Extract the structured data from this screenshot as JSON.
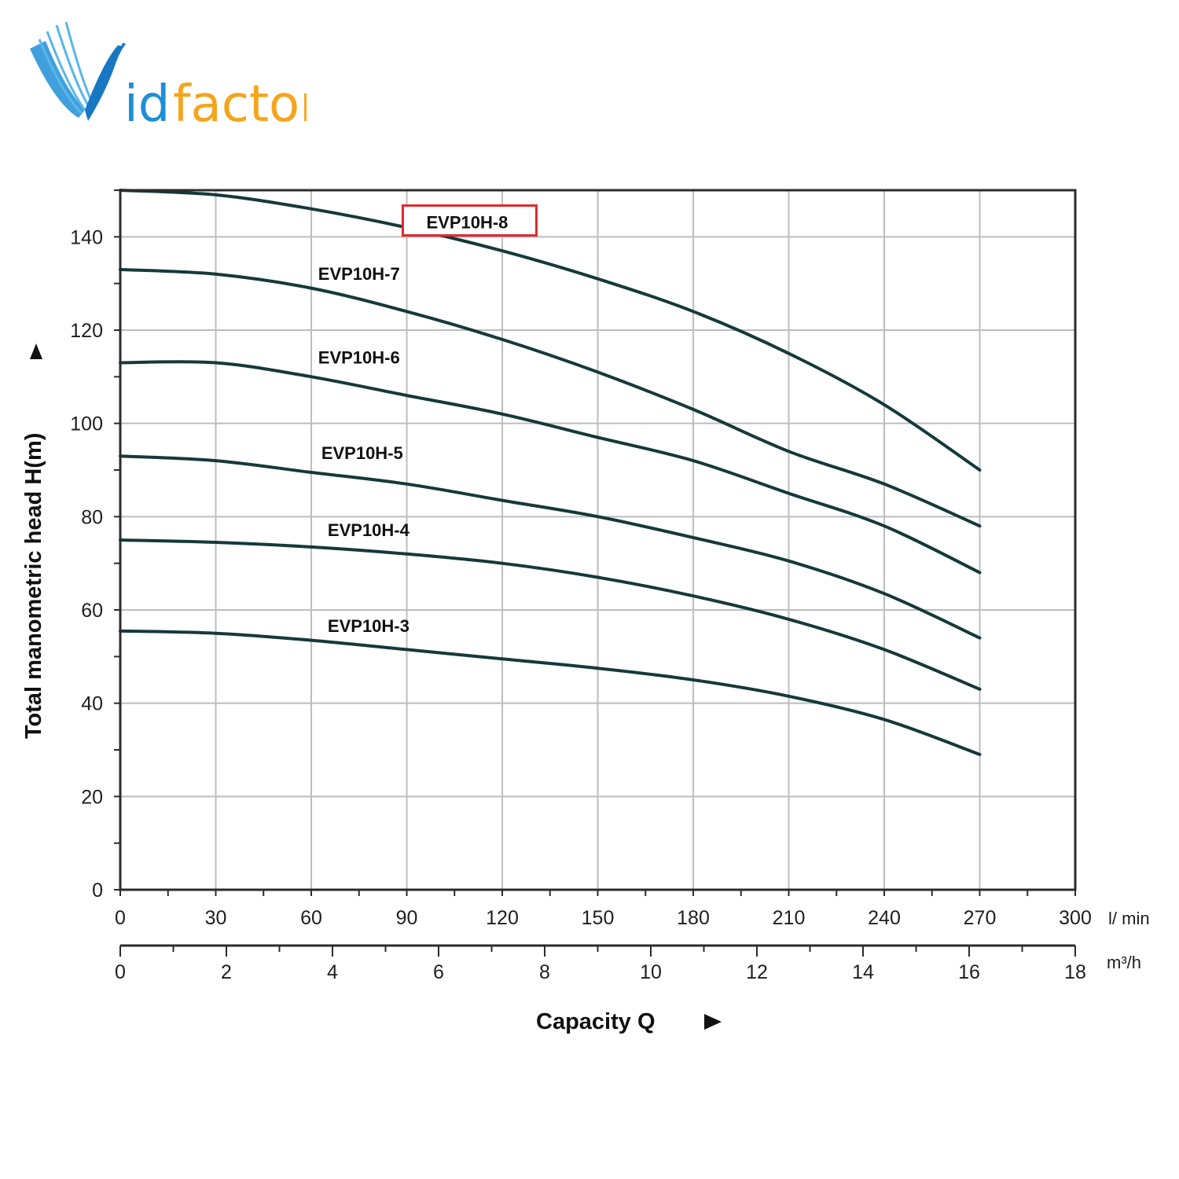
{
  "logo": {
    "text_v": "V",
    "text_rest": "idfactor",
    "colors": {
      "blue": "#1e8fd6",
      "orange": "#f5a51c"
    }
  },
  "chart_data": {
    "type": "line",
    "title": "",
    "xlabel": "Capacity Q",
    "ylabel": "Total manometric head H(m)",
    "xlim": [
      0,
      300
    ],
    "ylim": [
      0,
      150
    ],
    "x_unit": "l/ min",
    "secondary_x": {
      "unit": "m³/h",
      "lim": [
        0,
        18
      ],
      "ticks": [
        0,
        2,
        4,
        6,
        8,
        10,
        12,
        14,
        16,
        18
      ]
    },
    "x_ticks": [
      0,
      30,
      60,
      90,
      120,
      150,
      180,
      210,
      240,
      270,
      300
    ],
    "y_ticks": [
      0,
      20,
      40,
      60,
      80,
      100,
      120,
      140
    ],
    "grid": true,
    "line_color": "#16393a",
    "highlight_color": "#e0282e",
    "x": [
      0,
      30,
      60,
      90,
      120,
      150,
      180,
      210,
      240,
      270
    ],
    "series": [
      {
        "name": "EVP10H-8",
        "highlighted": true,
        "label_at": [
          109,
          143
        ],
        "values": [
          150,
          149,
          146,
          142,
          137,
          131,
          124,
          115,
          104,
          90
        ]
      },
      {
        "name": "EVP10H-7",
        "highlighted": false,
        "label_at": [
          75,
          132
        ],
        "values": [
          133,
          132,
          129,
          124,
          118,
          111,
          103,
          94,
          87,
          78
        ]
      },
      {
        "name": "EVP10H-6",
        "highlighted": false,
        "label_at": [
          75,
          114
        ],
        "values": [
          113,
          113,
          110,
          106,
          102,
          97,
          92,
          85,
          78,
          68
        ]
      },
      {
        "name": "EVP10H-5",
        "highlighted": false,
        "label_at": [
          76,
          93.5
        ],
        "values": [
          93,
          92,
          89.5,
          87,
          83.5,
          80,
          75.5,
          70.5,
          63.5,
          54
        ]
      },
      {
        "name": "EVP10H-4",
        "highlighted": false,
        "label_at": [
          78,
          77
        ],
        "values": [
          75,
          74.5,
          73.5,
          72,
          70,
          67,
          63,
          58,
          51.5,
          43
        ]
      },
      {
        "name": "EVP10H-3",
        "highlighted": false,
        "label_at": [
          78,
          56.5
        ],
        "values": [
          55.5,
          55,
          53.5,
          51.5,
          49.5,
          47.5,
          45,
          41.5,
          36.5,
          29
        ]
      }
    ]
  }
}
